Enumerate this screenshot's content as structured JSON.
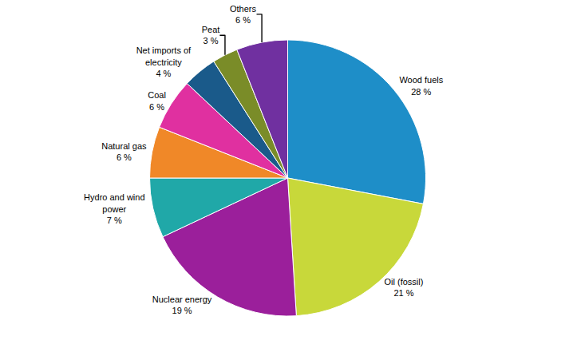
{
  "chart_data": {
    "type": "pie",
    "categories": [
      "Wood fuels",
      "Oil (fossil)",
      "Nuclear energy",
      "Hydro and wind\npower",
      "Natural gas",
      "Coal",
      "Net imports of\nelectricity",
      "Peat",
      "Others"
    ],
    "values": [
      28,
      21,
      19,
      7,
      6,
      6,
      4,
      3,
      6
    ],
    "value_labels": [
      "28 %",
      "21 %",
      "19 %",
      "7 %",
      "6 %",
      "6 %",
      "4 %",
      "3 %",
      "6 %"
    ],
    "colors": [
      "#1e8ec8",
      "#c8d83a",
      "#9b1f9b",
      "#20a8a8",
      "#f08828",
      "#e030a0",
      "#1a5a8a",
      "#7a8c28",
      "#7030a0"
    ],
    "data_labels": true
  }
}
